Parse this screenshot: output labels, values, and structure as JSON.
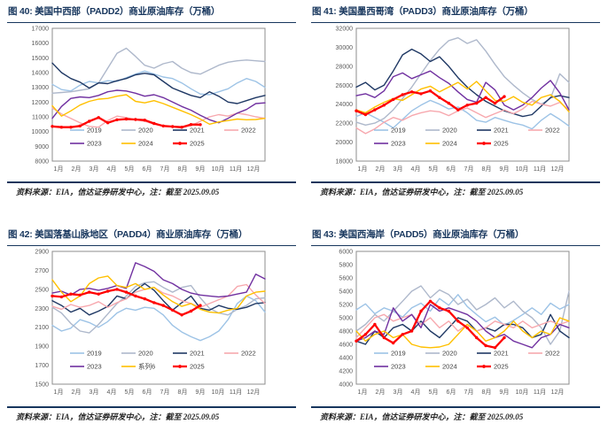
{
  "page_colors": {
    "title_text": "#17365D",
    "rule": "#17365D",
    "plot_border": "#8c8c8c",
    "axis_text": "#595959",
    "legend_text": "#404040",
    "source_text": "#262626"
  },
  "source_note": "资料来源：EIA，信达证券研发中心，注：截至 2025.09.05",
  "months": [
    "1月",
    "2月",
    "3月",
    "4月",
    "5月",
    "6月",
    "7月",
    "8月",
    "9月",
    "10月",
    "11月",
    "12月"
  ],
  "chart_data": [
    {
      "type": "line",
      "title": "图 40:  美国中西部（PADD2）商业原油库存（万桶）",
      "ylabel": "",
      "xlabel": "",
      "ylim": [
        8000,
        17000
      ],
      "ytick_step": 1000,
      "x_note": "weekly points Jan–Dec, evenly spaced; 2025 ends 2025.09.05",
      "legend_rows": [
        [
          "2019",
          "2020",
          "2021",
          "2022"
        ],
        [
          "2023",
          "2024",
          "2025"
        ]
      ],
      "series": [
        {
          "name": "2019",
          "color": "#9DC3E6",
          "marker": false,
          "values": [
            13200,
            12850,
            12750,
            13150,
            13400,
            13300,
            13450,
            13400,
            13650,
            13900,
            14100,
            13900,
            13700,
            13600,
            13300,
            12900,
            12550,
            12500,
            12700,
            12900,
            13300,
            13600,
            13400,
            13000
          ]
        },
        {
          "name": "2020",
          "color": "#AEB8CB",
          "marker": false,
          "values": [
            12600,
            12650,
            12700,
            12800,
            12900,
            13300,
            14300,
            15300,
            15650,
            15100,
            14500,
            14300,
            14600,
            14750,
            14300,
            14000,
            13900,
            14200,
            14500,
            14700,
            14800,
            14850,
            14800,
            14750
          ]
        },
        {
          "name": "2021",
          "color": "#1F3864",
          "marker": false,
          "values": [
            14650,
            14000,
            13600,
            13350,
            12950,
            13300,
            13250,
            13450,
            13600,
            13850,
            13950,
            13850,
            13400,
            12950,
            12700,
            12450,
            12300,
            12700,
            12400,
            12000,
            11900,
            12100,
            12300,
            12450
          ]
        },
        {
          "name": "2022",
          "color": "#F7A8AE",
          "marker": false,
          "values": [
            11600,
            11200,
            10900,
            10600,
            10350,
            10300,
            10750,
            11050,
            10950,
            10800,
            10700,
            10500,
            10400,
            10300,
            10250,
            10400,
            10700,
            11000,
            11150,
            11050,
            11250,
            11150,
            11000,
            10900
          ]
        },
        {
          "name": "2023",
          "color": "#7030A0",
          "marker": false,
          "values": [
            10900,
            11700,
            12250,
            12350,
            12300,
            12450,
            12700,
            12800,
            12750,
            12600,
            12400,
            12500,
            12300,
            12000,
            11700,
            11450,
            11100,
            10800,
            10600,
            10900,
            11250,
            11500,
            11900,
            11950
          ]
        },
        {
          "name": "2024",
          "color": "#FFC000",
          "marker": false,
          "values": [
            11750,
            11050,
            11400,
            11800,
            12050,
            12200,
            12250,
            12400,
            12500,
            12050,
            11950,
            12100,
            11900,
            11650,
            11400,
            11150,
            10850,
            10500,
            10650,
            10750,
            10850,
            10800,
            10820,
            10900
          ]
        },
        {
          "name": "2025",
          "color": "#FF0000",
          "marker": true,
          "values": [
            10350,
            10300,
            10300,
            10380,
            10700,
            10950,
            10600,
            10800,
            10850,
            10820,
            10780,
            10550,
            10380,
            10340,
            10300,
            10480,
            10470
          ]
        }
      ]
    },
    {
      "type": "line",
      "title": "图 41:  美国墨西哥湾（PADD3）商业原油库存（万桶）",
      "ylabel": "",
      "xlabel": "",
      "ylim": [
        18000,
        32000
      ],
      "ytick_step": 2000,
      "x_note": "weekly points Jan–Dec, evenly spaced; 2025 ends 2025.09.05",
      "legend_rows": [
        [
          "2019",
          "2020",
          "2021",
          "2022"
        ],
        [
          "2023",
          "2024",
          "2025"
        ]
      ],
      "series": [
        {
          "name": "2019",
          "color": "#9DC3E6",
          "marker": false,
          "values": [
            22700,
            23100,
            22600,
            22100,
            21500,
            22400,
            23300,
            23900,
            24400,
            24000,
            23500,
            23700,
            23100,
            22300,
            22100,
            22600,
            22300,
            22000,
            21800,
            21400,
            22300,
            23000,
            22400,
            21700
          ]
        },
        {
          "name": "2020",
          "color": "#AEB8CB",
          "marker": false,
          "values": [
            22100,
            21800,
            22000,
            22500,
            23400,
            24600,
            25800,
            27200,
            28600,
            29800,
            30700,
            31000,
            30400,
            30800,
            29600,
            28200,
            26900,
            26000,
            25200,
            24500,
            24000,
            24600,
            27200,
            26300
          ]
        },
        {
          "name": "2021",
          "color": "#1F3864",
          "marker": false,
          "values": [
            25800,
            26300,
            25500,
            26000,
            27500,
            29200,
            29800,
            29300,
            28500,
            29000,
            28000,
            26800,
            25800,
            25000,
            24300,
            23800,
            23300,
            23000,
            22700,
            22900,
            23800,
            24700,
            24900,
            24700
          ]
        },
        {
          "name": "2022",
          "color": "#F7A8AE",
          "marker": false,
          "values": [
            21500,
            20900,
            21400,
            22100,
            22600,
            22300,
            22800,
            23100,
            23300,
            23200,
            22800,
            23300,
            23600,
            23100,
            22600,
            23000,
            23400,
            23000,
            23500,
            24300,
            24000,
            23800,
            24200,
            23400
          ]
        },
        {
          "name": "2023",
          "color": "#7030A0",
          "marker": false,
          "values": [
            24900,
            25100,
            24700,
            25400,
            26900,
            27300,
            26700,
            27100,
            27500,
            26800,
            26200,
            25300,
            24500,
            24200,
            26300,
            25500,
            23900,
            23400,
            23900,
            24700,
            25700,
            26500,
            25200,
            23400
          ]
        },
        {
          "name": "2024",
          "color": "#FFC000",
          "marker": false,
          "values": [
            23400,
            23100,
            23700,
            24200,
            24600,
            24400,
            25000,
            25600,
            25900,
            25300,
            25800,
            26300,
            25600,
            26400,
            25400,
            24400,
            24300,
            24800,
            24200,
            23900,
            24700,
            25000,
            24300,
            23200
          ]
        },
        {
          "name": "2025",
          "color": "#FF0000",
          "marker": true,
          "values": [
            23300,
            22900,
            23400,
            23900,
            24500,
            25000,
            25300,
            25100,
            25400,
            24700,
            24100,
            23400,
            23900,
            24100,
            24700,
            24100,
            24800
          ]
        }
      ]
    },
    {
      "type": "line",
      "title": "图 42:  美国落基山脉地区（PADD4）商业原油库存（万桶）",
      "ylabel": "",
      "xlabel": "",
      "ylim": [
        1500,
        2900
      ],
      "ytick_step": 200,
      "x_note": "weekly points Jan–Dec, evenly spaced; 2025 ends 2025.09.05",
      "legend_rows": [
        [
          "2019",
          "2020",
          "2021",
          "2022"
        ],
        [
          "2023",
          "系列6",
          "2025"
        ]
      ],
      "series": [
        {
          "name": "2019",
          "color": "#9DC3E6",
          "marker": false,
          "values": [
            2120,
            2060,
            2090,
            2180,
            2150,
            2100,
            2160,
            2250,
            2300,
            2280,
            2310,
            2300,
            2230,
            2120,
            2050,
            2000,
            1960,
            2000,
            2060,
            2180,
            2350,
            2430,
            2380,
            2260
          ]
        },
        {
          "name": "2020",
          "color": "#AEB8CB",
          "marker": false,
          "values": [
            2310,
            2250,
            2140,
            2060,
            2040,
            2130,
            2240,
            2350,
            2430,
            2530,
            2570,
            2580,
            2520,
            2470,
            2520,
            2540,
            2410,
            2300,
            2250,
            2230,
            2290,
            2330,
            2400,
            2410
          ]
        },
        {
          "name": "2021",
          "color": "#1F3864",
          "marker": false,
          "values": [
            2380,
            2330,
            2260,
            2300,
            2230,
            2270,
            2320,
            2430,
            2400,
            2490,
            2560,
            2490,
            2380,
            2280,
            2360,
            2430,
            2300,
            2280,
            2330,
            2300,
            2290,
            2310,
            2350,
            2360
          ]
        },
        {
          "name": "2022",
          "color": "#F7A8AE",
          "marker": false,
          "values": [
            2320,
            2290,
            2340,
            2310,
            2330,
            2370,
            2310,
            2360,
            2400,
            2470,
            2500,
            2520,
            2460,
            2430,
            2380,
            2350,
            2310,
            2350,
            2390,
            2430,
            2530,
            2550,
            2440,
            2350
          ]
        },
        {
          "name": "2023",
          "color": "#7030A0",
          "marker": false,
          "values": [
            2460,
            2480,
            2440,
            2500,
            2510,
            2490,
            2510,
            2540,
            2510,
            2780,
            2740,
            2690,
            2600,
            2560,
            2500,
            2460,
            2440,
            2430,
            2420,
            2430,
            2450,
            2470,
            2660,
            2610
          ]
        },
        {
          "name": "系列6",
          "color": "#FFC000",
          "marker": false,
          "values": [
            2600,
            2470,
            2370,
            2430,
            2560,
            2620,
            2640,
            2540,
            2520,
            2560,
            2500,
            2520,
            2440,
            2370,
            2320,
            2350,
            2290,
            2260,
            2250,
            2280,
            2300,
            2430,
            2470,
            2480
          ]
        },
        {
          "name": "2025",
          "color": "#FF0000",
          "marker": true,
          "values": [
            2430,
            2420,
            2450,
            2440,
            2470,
            2450,
            2480,
            2500,
            2470,
            2430,
            2400,
            2360,
            2330,
            2280,
            2230,
            2270,
            2330
          ]
        }
      ]
    },
    {
      "type": "line",
      "title": "图 43:  美国西海岸（PADD5）商业原油库存（万桶）",
      "ylabel": "",
      "xlabel": "",
      "ylim": [
        4000,
        6000
      ],
      "ytick_step": 200,
      "x_note": "weekly points Jan–Dec, evenly spaced; 2025 ends 2025.09.05",
      "legend_rows": [
        [
          "2019",
          "2020",
          "2021",
          "2022"
        ],
        [
          "2023",
          "2024",
          "2025"
        ]
      ],
      "series": [
        {
          "name": "2019",
          "color": "#9DC3E6",
          "marker": false,
          "values": [
            5120,
            5210,
            5060,
            5150,
            5100,
            5010,
            5150,
            5220,
            5100,
            5290,
            5190,
            5350,
            5170,
            5050,
            4940,
            5010,
            4890,
            4960,
            5050,
            5150,
            5050,
            5220,
            5130,
            5200
          ]
        },
        {
          "name": "2020",
          "color": "#AEB8CB",
          "marker": false,
          "values": [
            4800,
            4900,
            5050,
            4950,
            5100,
            5250,
            5400,
            5480,
            5300,
            5420,
            5350,
            5200,
            5280,
            5120,
            5200,
            5300,
            5150,
            5250,
            5100,
            5000,
            4850,
            4600,
            4800,
            5400
          ]
        },
        {
          "name": "2021",
          "color": "#1F3864",
          "marker": false,
          "values": [
            4650,
            4600,
            4800,
            4700,
            4850,
            4900,
            4800,
            4950,
            4800,
            4700,
            4850,
            5000,
            4950,
            4800,
            4850,
            4800,
            4900,
            4900,
            4850,
            4700,
            4750,
            5050,
            4800,
            4700
          ]
        },
        {
          "name": "2022",
          "color": "#F7A8AE",
          "marker": false,
          "values": [
            4700,
            4850,
            5000,
            5050,
            4950,
            5000,
            5050,
            4900,
            5000,
            4850,
            4950,
            4800,
            4900,
            4800,
            4850,
            4950,
            4900,
            4850,
            4950,
            4850,
            4900,
            4950,
            4900,
            4950
          ]
        },
        {
          "name": "2023",
          "color": "#7030A0",
          "marker": false,
          "values": [
            4650,
            4700,
            4800,
            4750,
            5150,
            4950,
            5050,
            4850,
            5200,
            5100,
            5150,
            5100,
            5050,
            4950,
            4800,
            4700,
            4750,
            4650,
            4600,
            4550,
            4700,
            4750,
            4900,
            4850
          ]
        },
        {
          "name": "2024",
          "color": "#FFC000",
          "marker": false,
          "values": [
            4800,
            4650,
            4750,
            4800,
            4700,
            4750,
            4600,
            4560,
            4550,
            4560,
            4600,
            4750,
            4900,
            4800,
            4650,
            4700,
            4800,
            4950,
            4800,
            4700,
            4800,
            4750,
            5000,
            4950
          ]
        },
        {
          "name": "2025",
          "color": "#FF0000",
          "marker": true,
          "values": [
            4650,
            4750,
            4900,
            4700,
            4620,
            4750,
            4800,
            5100,
            5250,
            5150,
            5100,
            4950,
            4850,
            4700,
            4580,
            4550,
            4700
          ]
        }
      ]
    }
  ]
}
